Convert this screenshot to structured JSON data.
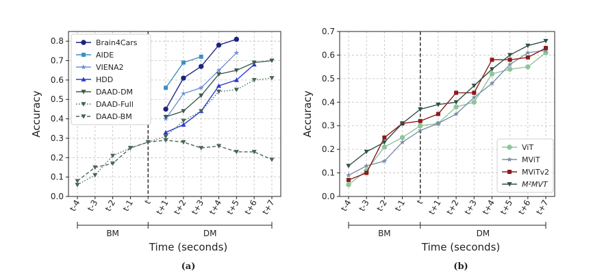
{
  "chart_data": [
    {
      "id": "a",
      "type": "line",
      "caption": "(a)",
      "xlabel": "Time (seconds)",
      "ylabel": "Accuracy",
      "categories": [
        "t-4",
        "t-3",
        "t-2",
        "t-1",
        "t",
        "t+1",
        "t+2",
        "t+3",
        "t+4",
        "t+5",
        "t+6",
        "t+7"
      ],
      "ylim": [
        0,
        0.85
      ],
      "yticks": [
        "0.0",
        "0.1",
        "0.2",
        "0.3",
        "0.4",
        "0.5",
        "0.6",
        "0.7",
        "0.8"
      ],
      "grid": true,
      "legend_position": "upper-left",
      "split_index": 4,
      "phase_labels": [
        "BM",
        "DM"
      ],
      "series": [
        {
          "name": "Brain4Cars",
          "color": "#1a237e",
          "style": "solid",
          "marker": "circle",
          "values": [
            null,
            null,
            null,
            null,
            null,
            0.45,
            0.61,
            0.67,
            0.78,
            0.81,
            null,
            null
          ]
        },
        {
          "name": "AIDE",
          "color": "#3b8fc4",
          "style": "solid",
          "marker": "square",
          "values": [
            null,
            null,
            null,
            null,
            null,
            0.56,
            0.69,
            0.72,
            null,
            null,
            null,
            null
          ]
        },
        {
          "name": "VIENA2",
          "color": "#6f8fd8",
          "style": "solid",
          "marker": "star",
          "values": [
            null,
            null,
            null,
            null,
            null,
            0.4,
            0.53,
            0.56,
            0.65,
            0.74,
            null,
            null
          ]
        },
        {
          "name": "HDD",
          "color": "#2a3bd1",
          "style": "solid",
          "marker": "triangle",
          "values": [
            null,
            null,
            null,
            null,
            null,
            0.33,
            0.37,
            0.44,
            0.57,
            0.6,
            0.68,
            null
          ]
        },
        {
          "name": "DAAD-DM",
          "color": "#3d5a4c",
          "style": "solid",
          "marker": "tri-down",
          "values": [
            null,
            null,
            null,
            null,
            null,
            0.41,
            0.44,
            0.52,
            0.63,
            0.65,
            0.69,
            0.7
          ]
        },
        {
          "name": "DAAD-Full",
          "color": "#4a6656",
          "style": "dotted",
          "marker": "tri-down",
          "values": [
            0.06,
            0.11,
            0.21,
            0.25,
            0.28,
            0.31,
            0.39,
            0.44,
            0.54,
            0.55,
            0.6,
            0.61
          ]
        },
        {
          "name": "DAAD-BM",
          "color": "#4a6656",
          "style": "dashed",
          "marker": "tri-down",
          "values": [
            0.08,
            0.15,
            0.17,
            0.25,
            0.28,
            0.29,
            0.28,
            0.25,
            0.26,
            0.23,
            0.23,
            0.19
          ]
        }
      ]
    },
    {
      "id": "b",
      "type": "line",
      "caption": "(b)",
      "xlabel": "Time (seconds)",
      "ylabel": "Accuracy",
      "categories": [
        "t-4",
        "t-3",
        "t-2",
        "t-1",
        "t",
        "t+1",
        "t+2",
        "t+3",
        "t+4",
        "t+5",
        "t+6",
        "t+7"
      ],
      "ylim": [
        0,
        0.7
      ],
      "yticks": [
        "0.0",
        "0.1",
        "0.2",
        "0.3",
        "0.4",
        "0.5",
        "0.6",
        "0.7"
      ],
      "grid": true,
      "legend_position": "lower-right",
      "split_index": 4,
      "phase_labels": [
        "BM",
        "DM"
      ],
      "series": [
        {
          "name": "ViT",
          "color": "#8fc49a",
          "style": "solid",
          "marker": "circle",
          "values": [
            0.05,
            0.11,
            0.21,
            0.25,
            0.3,
            0.31,
            0.38,
            0.4,
            0.52,
            0.54,
            0.55,
            0.61
          ]
        },
        {
          "name": "MViT",
          "color": "#7a8ea8",
          "style": "solid",
          "marker": "star",
          "values": [
            0.09,
            0.13,
            0.15,
            0.23,
            0.28,
            0.31,
            0.35,
            0.42,
            0.48,
            0.56,
            0.61,
            0.62
          ]
        },
        {
          "name": "MViTv2",
          "color": "#8b1a1a",
          "style": "solid",
          "marker": "square",
          "values": [
            0.07,
            0.1,
            0.25,
            0.31,
            0.32,
            0.35,
            0.44,
            0.44,
            0.58,
            0.58,
            0.59,
            0.63
          ]
        },
        {
          "name": "M²MVT",
          "color": "#2f4f46",
          "style": "solid",
          "marker": "tri-down",
          "values": [
            0.13,
            0.19,
            0.23,
            0.31,
            0.37,
            0.39,
            0.4,
            0.47,
            0.54,
            0.6,
            0.64,
            0.66
          ]
        }
      ]
    }
  ]
}
